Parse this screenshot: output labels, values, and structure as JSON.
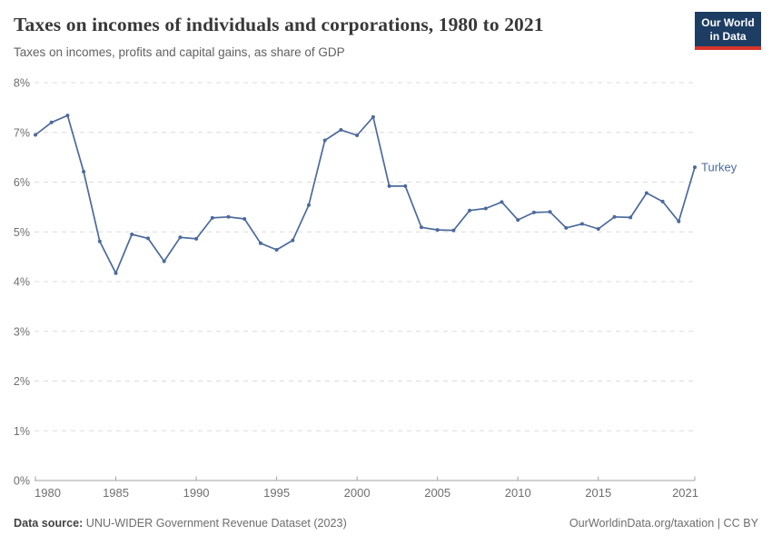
{
  "header": {
    "title": "Taxes on incomes of individuals and corporations, 1980 to 2021",
    "subtitle": "Taxes on incomes, profits and capital gains, as share of GDP",
    "logo": {
      "line1": "Our World",
      "line2": "in Data",
      "bg_color": "#1d3d63",
      "accent_color": "#d8352a"
    }
  },
  "chart_data": {
    "type": "line",
    "title": "Taxes on incomes of individuals and corporations, 1980 to 2021",
    "subtitle": "Taxes on incomes, profits and capital gains, as share of GDP",
    "xlabel": "",
    "ylabel": "",
    "xlim": [
      1980,
      2021
    ],
    "ylim": [
      0,
      8
    ],
    "grid": "horizontal-dashed",
    "legend_position": "end-of-line-label",
    "x_ticks": [
      1980,
      1985,
      1990,
      1995,
      2000,
      2005,
      2010,
      2015,
      2021
    ],
    "y_ticks": [
      {
        "value": 0,
        "label": "0%"
      },
      {
        "value": 1,
        "label": "1%"
      },
      {
        "value": 2,
        "label": "2%"
      },
      {
        "value": 3,
        "label": "3%"
      },
      {
        "value": 4,
        "label": "4%"
      },
      {
        "value": 5,
        "label": "5%"
      },
      {
        "value": 6,
        "label": "6%"
      },
      {
        "value": 7,
        "label": "7%"
      },
      {
        "value": 8,
        "label": "8%"
      }
    ],
    "series": [
      {
        "name": "Turkey",
        "color": "#4c6a9c",
        "x": [
          1980,
          1981,
          1982,
          1983,
          1984,
          1985,
          1986,
          1987,
          1988,
          1989,
          1990,
          1991,
          1992,
          1993,
          1994,
          1995,
          1996,
          1997,
          1998,
          1999,
          2000,
          2001,
          2002,
          2003,
          2004,
          2005,
          2006,
          2007,
          2008,
          2009,
          2010,
          2011,
          2012,
          2013,
          2014,
          2015,
          2016,
          2017,
          2018,
          2019,
          2020,
          2021
        ],
        "values": [
          6.95,
          7.2,
          7.34,
          6.21,
          4.81,
          4.17,
          4.95,
          4.87,
          4.41,
          4.89,
          4.86,
          5.28,
          5.3,
          5.26,
          4.77,
          4.64,
          4.83,
          5.54,
          6.84,
          7.05,
          6.94,
          7.31,
          5.92,
          5.92,
          5.09,
          5.04,
          5.03,
          5.43,
          5.47,
          5.6,
          5.24,
          5.39,
          5.4,
          5.08,
          5.16,
          5.06,
          5.3,
          5.29,
          5.78,
          5.61,
          5.21,
          6.3
        ]
      }
    ]
  },
  "footer": {
    "source_label": "Data source:",
    "source_text": " UNU-WIDER Government Revenue Dataset (2023)",
    "credit": "OurWorldinData.org/taxation | CC BY"
  }
}
